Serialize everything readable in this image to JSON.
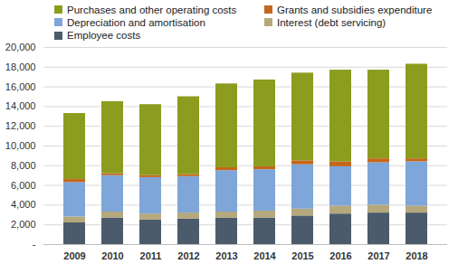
{
  "chart_data": {
    "type": "bar",
    "stacked": true,
    "grid": true,
    "legend": "top",
    "categories": [
      "2009",
      "2010",
      "2011",
      "2012",
      "2013",
      "2014",
      "2015",
      "2016",
      "2017",
      "2018"
    ],
    "series": [
      {
        "name": "Purchases and other operating costs",
        "color": "#8c9c1f",
        "values": [
          6700,
          7300,
          7200,
          7900,
          8500,
          8800,
          8900,
          9300,
          9000,
          9600
        ]
      },
      {
        "name": "Grants and subsidies expenditure",
        "color": "#c4661c",
        "values": [
          300,
          200,
          200,
          200,
          300,
          300,
          400,
          500,
          400,
          300
        ]
      },
      {
        "name": "Depreciation and amortisation",
        "color": "#7ea6d8",
        "values": [
          3500,
          3700,
          3700,
          3700,
          4200,
          4200,
          4500,
          4000,
          4300,
          4500
        ]
      },
      {
        "name": "Interest (debt servicing)",
        "color": "#b5a87c",
        "values": [
          600,
          600,
          600,
          600,
          600,
          700,
          700,
          800,
          800,
          700
        ]
      },
      {
        "name": "Employee costs",
        "color": "#4b5b6b",
        "values": [
          2200,
          2700,
          2500,
          2600,
          2700,
          2700,
          2900,
          3100,
          3200,
          3200
        ]
      }
    ],
    "ylim": [
      0,
      20000
    ],
    "yticks": [
      {
        "value": 0,
        "label": "-"
      },
      {
        "value": 2000,
        "label": "2,000"
      },
      {
        "value": 4000,
        "label": "4,000"
      },
      {
        "value": 6000,
        "label": "6,000"
      },
      {
        "value": 8000,
        "label": "8,000"
      },
      {
        "value": 10000,
        "label": "10,000"
      },
      {
        "value": 12000,
        "label": "12,000"
      },
      {
        "value": 14000,
        "label": "14,000"
      },
      {
        "value": 16000,
        "label": "16,000"
      },
      {
        "value": 18000,
        "label": "18,000"
      },
      {
        "value": 20000,
        "label": "20,000"
      }
    ]
  }
}
